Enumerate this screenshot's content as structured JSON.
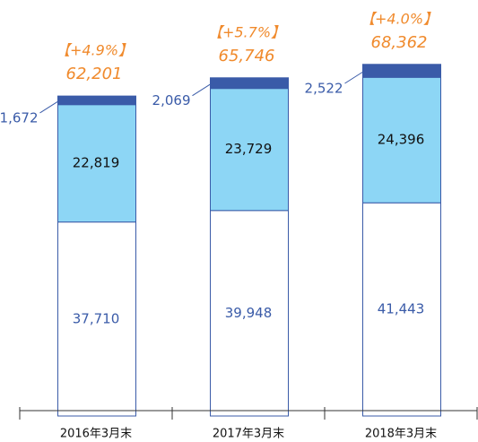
{
  "chart_data": {
    "type": "stacked-bar",
    "categories": [
      "2016年3月末",
      "2017年3月末",
      "2018年3月末"
    ],
    "series": [
      {
        "color": "#ffffff",
        "border": "#3a5ba8",
        "label_color": "#3a5ba8",
        "values": [
          37710,
          39948,
          41443
        ],
        "value_labels": [
          "37,710",
          "39,948",
          "41,443"
        ]
      },
      {
        "color": "#8dd6f5",
        "border": "#3a5ba8",
        "label_color": "#111111",
        "values": [
          22819,
          23729,
          24396
        ],
        "value_labels": [
          "22,819",
          "23,729",
          "24,396"
        ]
      },
      {
        "color": "#3a5ba8",
        "border": "#3a5ba8",
        "label_color": "#3a5ba8",
        "values": [
          1672,
          2069,
          2522
        ],
        "value_labels": [
          "1,672",
          "2,069",
          "2,522"
        ]
      }
    ],
    "totals": [
      62201,
      65746,
      68362
    ],
    "total_labels": [
      "62,201",
      "65,746",
      "68,362"
    ],
    "annotations": [
      "【+4.9%】",
      "【+5.7%】",
      "【+4.0%】"
    ],
    "highlight_color": "#f08a2c",
    "ylim": [
      0,
      80000
    ]
  }
}
